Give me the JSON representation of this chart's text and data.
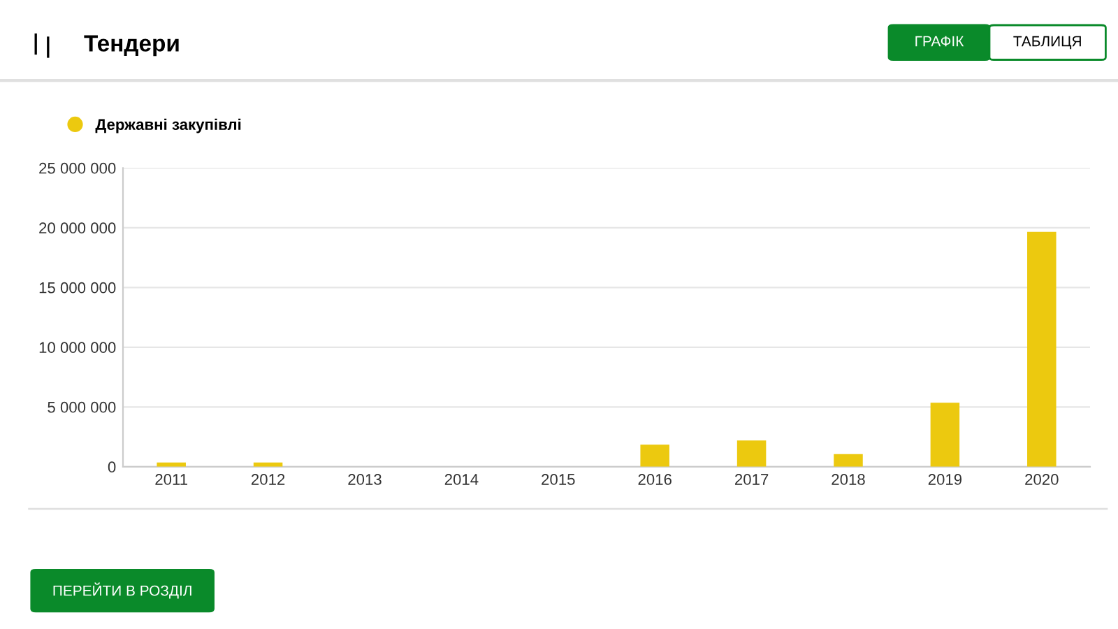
{
  "chart_data": {
    "type": "bar",
    "title": "Тендери",
    "categories": [
      "2011",
      "2012",
      "2013",
      "2014",
      "2015",
      "2016",
      "2017",
      "2018",
      "2019",
      "2020"
    ],
    "series": [
      {
        "name": "Державні закупівлі",
        "color": "#ecc90f",
        "values": [
          350000,
          350000,
          0,
          0,
          0,
          1850000,
          2200000,
          1050000,
          5350000,
          19650000
        ]
      }
    ],
    "ylim": [
      0,
      25000000
    ],
    "yticks": [
      {
        "value": 0,
        "label": "0"
      },
      {
        "value": 5000000,
        "label": "5 000 000"
      },
      {
        "value": 10000000,
        "label": "10 000 000"
      },
      {
        "value": 15000000,
        "label": "15 000 000"
      },
      {
        "value": 20000000,
        "label": "20 000 000"
      },
      {
        "value": 25000000,
        "label": "25 000 000"
      }
    ],
    "grid": "y",
    "legend": "top left",
    "annotations": [
      "ГРАФІК",
      "ТАБЛИЦЯ",
      "ПЕРЕЙТИ В РОЗДІЛ"
    ]
  }
}
